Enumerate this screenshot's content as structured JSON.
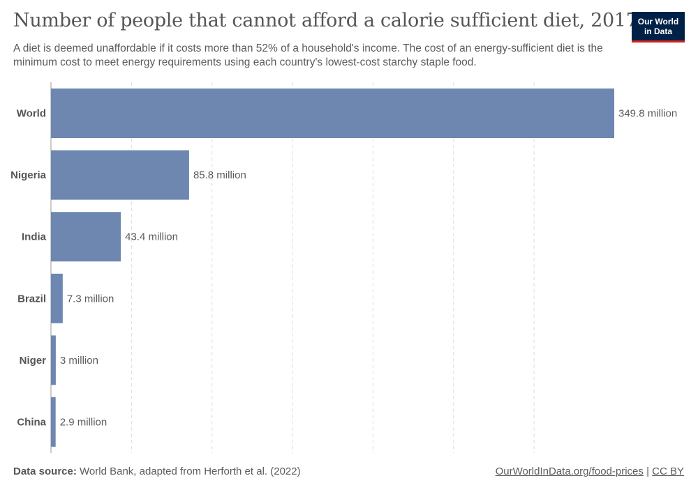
{
  "header": {
    "title": "Number of people that cannot afford a calorie sufficient diet, 2017",
    "subtitle": "A diet is deemed unaffordable if it costs more than 52% of a household's income. The cost of an energy-sufficient diet is the minimum cost to meet energy requirements using each country's lowest-cost starchy staple food."
  },
  "logo": {
    "line1": "Our World",
    "line2": "in Data"
  },
  "colors": {
    "bar": "#6e87b1",
    "grid": "#dddddd",
    "axis": "#999999",
    "label": "#555555",
    "value_label": "#5b5b5b",
    "logo_bg": "#002147",
    "logo_accent": "#ce261e"
  },
  "chart_data": {
    "type": "bar",
    "orientation": "horizontal",
    "categories": [
      "World",
      "Nigeria",
      "India",
      "Brazil",
      "Niger",
      "China"
    ],
    "values": [
      349.8,
      85.8,
      43.4,
      7.3,
      3,
      2.9
    ],
    "value_labels": [
      "349.8 million",
      "85.8 million",
      "43.4 million",
      "7.3 million",
      "3 million",
      "2.9 million"
    ],
    "unit": "million",
    "xlim": [
      0,
      349.8
    ],
    "gridlines": [
      0,
      50,
      100,
      150,
      200,
      250,
      300
    ],
    "grid": true
  },
  "footer": {
    "source_label": "Data source:",
    "source_text": "World Bank, adapted from Herforth et al. (2022)",
    "link_text": "OurWorldInData.org/food-prices",
    "separator": "|",
    "license": "CC BY"
  }
}
